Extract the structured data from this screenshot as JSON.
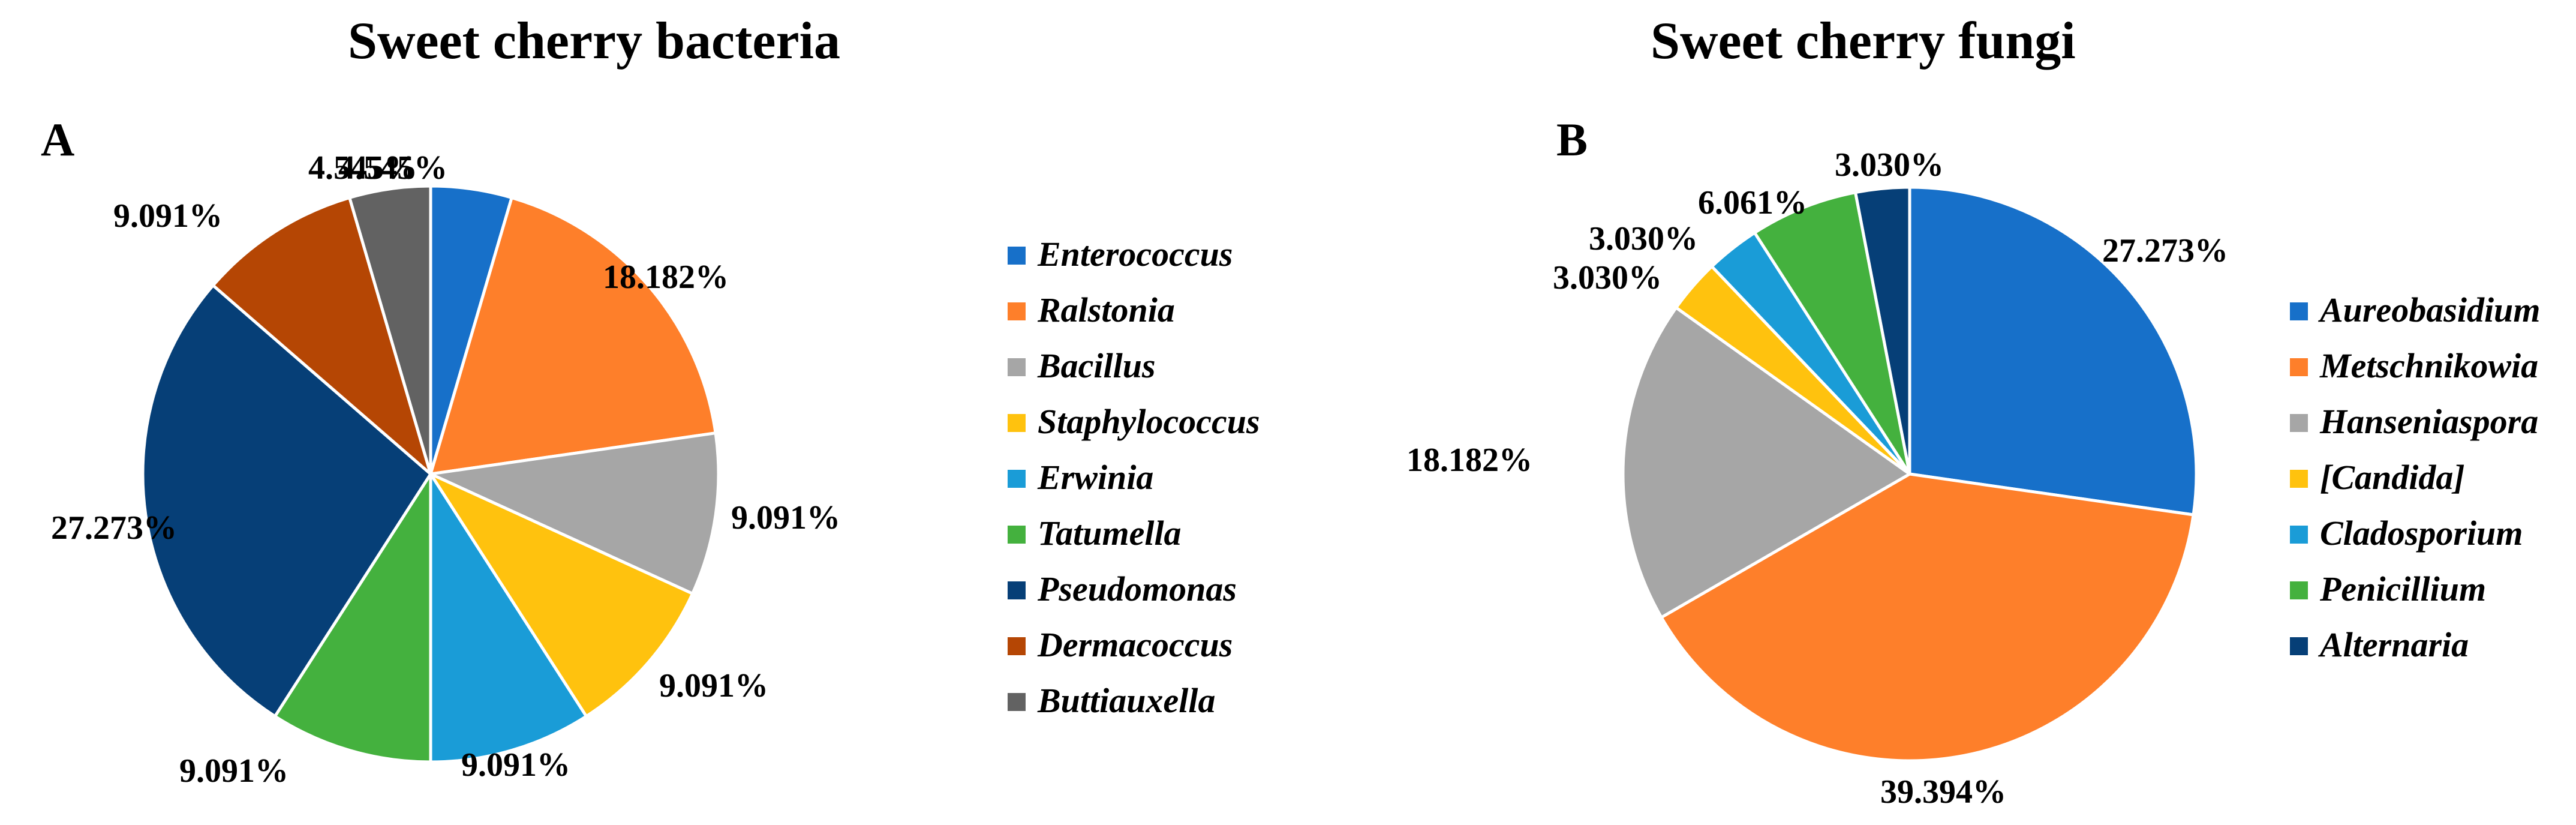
{
  "colors": {
    "blue": "#1770C9",
    "orange": "#FE7F2A",
    "gray": "#A6A6A6",
    "yellow": "#FFC20E",
    "lightblue": "#1A9CD7",
    "green": "#44B13E",
    "navy": "#063F77",
    "brown": "#B54604",
    "darkgray": "#626262"
  },
  "chart_data": [
    {
      "type": "pie",
      "panel_label": "A",
      "title": "Sweet cherry bacteria",
      "start": "12 o'clock",
      "direction": "clockwise",
      "legend_position": "right",
      "categories": [
        "Enterococcus",
        "Ralstonia",
        "Bacillus",
        "Staphylococcus",
        "Erwinia",
        "Tatumella",
        "Pseudomonas",
        "Dermacoccus",
        "Buttiauxella"
      ],
      "values": [
        4.545,
        18.182,
        9.091,
        9.091,
        9.091,
        9.091,
        27.273,
        9.091,
        4.545
      ],
      "data_labels": [
        "4.545%",
        "18.182%",
        "9.091%",
        "9.091%",
        "9.091%",
        "9.091%",
        "27.273%",
        "9.091%",
        "4.545%"
      ],
      "colors": [
        "#1770C9",
        "#FE7F2A",
        "#A6A6A6",
        "#FFC20E",
        "#1A9CD7",
        "#44B13E",
        "#063F77",
        "#B54604",
        "#626262"
      ]
    },
    {
      "type": "pie",
      "panel_label": "B",
      "title": "Sweet cherry fungi",
      "start": "12 o'clock",
      "direction": "clockwise",
      "legend_position": "right",
      "categories": [
        "Aureobasidium",
        "Metschnikowia",
        "Hanseniaspora",
        "[Candida]",
        "Cladosporium",
        "Penicillium",
        "Alternaria"
      ],
      "values": [
        27.273,
        39.394,
        18.182,
        3.03,
        3.03,
        6.061,
        3.03
      ],
      "data_labels": [
        "27.273%",
        "39.394%",
        "18.182%",
        "3.030%",
        "3.030%",
        "6.061%",
        "3.030%"
      ],
      "colors": [
        "#1770C9",
        "#FE7F2A",
        "#A6A6A6",
        "#FFC20E",
        "#1A9CD7",
        "#44B13E",
        "#063F77"
      ]
    }
  ]
}
